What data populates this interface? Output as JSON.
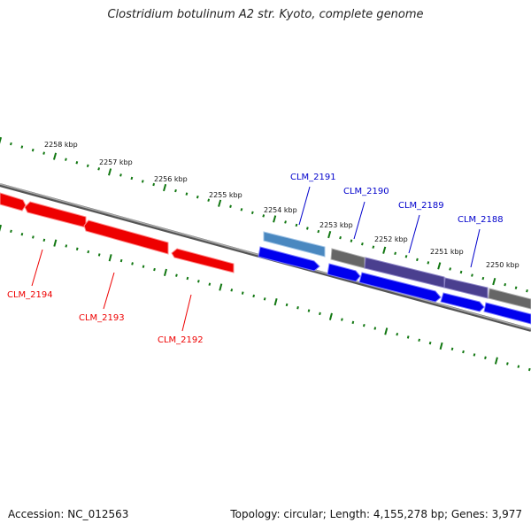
{
  "title": "Clostridium botulinum A2 str. Kyoto, complete genome",
  "footer": {
    "accession": "Accession: NC_012563",
    "summary": "Topology: circular; Length: 4,155,278 bp; Genes: 3,977"
  },
  "colors": {
    "reverse_gene": "#ee0000",
    "forward_gene": "#0000ee",
    "forward_gene_light": "#4a88c0",
    "hypothetical": "#666666",
    "hypothetical_purple": "#4a3f8f",
    "tick_major": "#117711",
    "tick_minor": "#117711",
    "backbone": "#888888"
  },
  "scale": {
    "ticks": [
      {
        "label": "2258 kbp"
      },
      {
        "label": "2257 kbp"
      },
      {
        "label": "2256 kbp"
      },
      {
        "label": "2255 kbp"
      },
      {
        "label": "2254 kbp"
      },
      {
        "label": "2253 kbp"
      },
      {
        "label": "2252 kbp"
      },
      {
        "label": "2251 kbp"
      },
      {
        "label": "2250 kbp"
      }
    ]
  },
  "genes": {
    "reverse": [
      {
        "label": "CLM_2194"
      },
      {
        "label": "CLM_2193"
      },
      {
        "label": "CLM_2192"
      }
    ],
    "forward": [
      {
        "label": "CLM_2191"
      },
      {
        "label": "CLM_2190"
      },
      {
        "label": "CLM_2189"
      },
      {
        "label": "CLM_2188"
      }
    ]
  }
}
